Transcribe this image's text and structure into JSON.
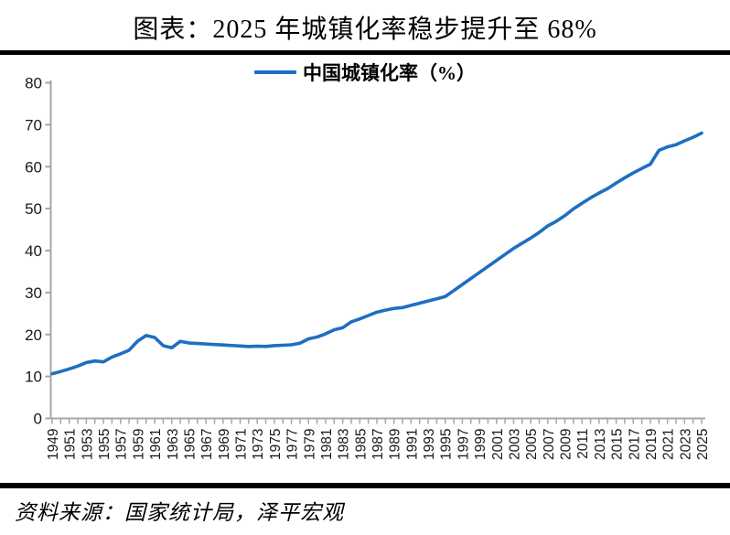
{
  "title": "图表：2025 年城镇化率稳步提升至 68%",
  "source": "资料来源：国家统计局，泽平宏观",
  "legend": {
    "label": "中国城镇化率（%）"
  },
  "colors": {
    "line": "#1d6fc1",
    "axis": "#a6a6a6",
    "rule": "#000000",
    "tick_label": "#1a1a1a"
  },
  "chart_data": {
    "type": "line",
    "title": "图表：2025 年城镇化率稳步提升至 68%",
    "legend_entries": [
      "中国城镇化率（%）"
    ],
    "legend_position": "top",
    "grid": false,
    "ylim": [
      0,
      80
    ],
    "yticks": [
      0,
      10,
      20,
      30,
      40,
      50,
      60,
      70,
      80
    ],
    "xtick_label_interval": 2,
    "xlabel": "",
    "ylabel": "",
    "x": [
      1949,
      1950,
      1951,
      1952,
      1953,
      1954,
      1955,
      1956,
      1957,
      1958,
      1959,
      1960,
      1961,
      1962,
      1963,
      1964,
      1965,
      1966,
      1967,
      1968,
      1969,
      1970,
      1971,
      1972,
      1973,
      1974,
      1975,
      1976,
      1977,
      1978,
      1979,
      1980,
      1981,
      1982,
      1983,
      1984,
      1985,
      1986,
      1987,
      1988,
      1989,
      1990,
      1991,
      1992,
      1993,
      1994,
      1995,
      1996,
      1997,
      1998,
      1999,
      2000,
      2001,
      2002,
      2003,
      2004,
      2005,
      2006,
      2007,
      2008,
      2009,
      2010,
      2011,
      2012,
      2013,
      2014,
      2015,
      2016,
      2017,
      2018,
      2019,
      2020,
      2021,
      2022,
      2023,
      2024,
      2025
    ],
    "series": [
      {
        "name": "中国城镇化率（%）",
        "values": [
          10.64,
          11.18,
          11.78,
          12.46,
          13.31,
          13.69,
          13.48,
          14.62,
          15.39,
          16.25,
          18.41,
          19.75,
          19.29,
          17.33,
          16.84,
          18.37,
          17.98,
          17.86,
          17.74,
          17.62,
          17.5,
          17.38,
          17.26,
          17.13,
          17.2,
          17.16,
          17.34,
          17.44,
          17.55,
          17.92,
          18.96,
          19.39,
          20.16,
          21.13,
          21.62,
          23.01,
          23.71,
          24.52,
          25.32,
          25.81,
          26.21,
          26.41,
          26.94,
          27.46,
          27.99,
          28.51,
          29.04,
          30.48,
          31.91,
          33.35,
          34.78,
          36.22,
          37.66,
          39.09,
          40.53,
          41.76,
          42.99,
          44.34,
          45.89,
          46.99,
          48.34,
          49.95,
          51.27,
          52.57,
          53.73,
          54.77,
          56.1,
          57.35,
          58.52,
          59.58,
          60.6,
          63.89,
          64.72,
          65.22,
          66.16,
          67.0,
          68.0
        ]
      }
    ]
  }
}
